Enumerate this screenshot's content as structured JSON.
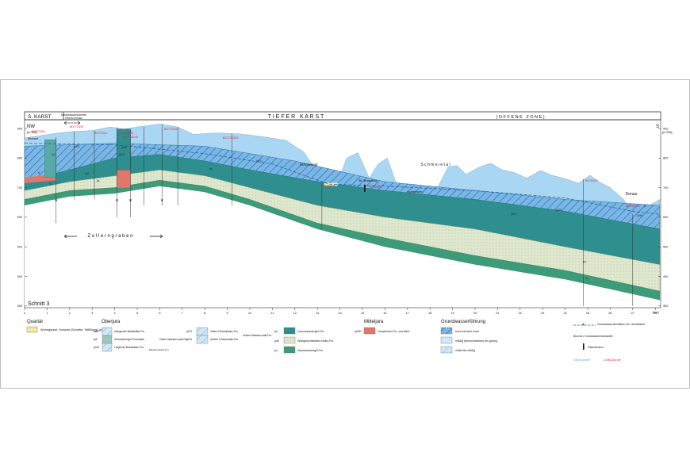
{
  "header": {
    "left": "S. KARST",
    "center": "T I E F E R   K A R S T",
    "right": "( O F F E N E   Z O N E )",
    "boundary_label_1": "Karstwasserscheide",
    "boundary_label_2": "Rhein-Donau"
  },
  "orientation": {
    "left": "NW",
    "right": "S"
  },
  "axis": {
    "y_unit": "[m NN]",
    "y_ticks": [
      "900",
      "800",
      "700",
      "600",
      "500",
      "400",
      "300"
    ],
    "x_unit": "[km]",
    "x_ticks": [
      "0",
      "1",
      "2",
      "3",
      "4",
      "5",
      "6",
      "7",
      "8",
      "9",
      "10",
      "11",
      "12",
      "13",
      "14",
      "15",
      "16",
      "17",
      "18",
      "19",
      "20",
      "21",
      "22",
      "23",
      "24",
      "25",
      "26",
      "27",
      "28"
    ]
  },
  "section_title": "Schnitt 3",
  "labels": {
    "zollerngraben": "Z o l l e r n g r a b e n",
    "schmeietal_1": "Schmeietal",
    "schmeietal_2": "S c h m e i e t a l",
    "donau": "Donau",
    "alb_place": "Albtrauf",
    "place_2": "Br. Strassberg",
    "place_3": "Kaiseringen"
  },
  "boreholes": [
    "BO7720/81",
    "BO7720/42",
    "BO7720/4",
    "BO7720/40",
    "BO7720/48",
    "BO7720/47",
    "BO7720/302",
    "BO7820/9",
    "BO7820/3",
    "BO7920/1",
    "BO7920/12"
  ],
  "layer_codes": [
    "joFO",
    "joFO",
    "joZ",
    "joL",
    "ki",
    "ox",
    "joFO",
    "joFO",
    "joL",
    "joZ",
    "joFO",
    "joFO",
    "joHF",
    "joL",
    "ox",
    "ki"
  ],
  "legend": {
    "quartaer": {
      "title": "Quartär",
      "items": [
        {
          "label": "Würmglazial, Holozän (Schotter, Talfüllung) (qWG)"
        }
      ]
    },
    "oberjura": {
      "title": "Oberjura",
      "col1": [
        {
          "code": "joHF",
          "label": "Hangende Bankkalke-Fm."
        },
        {
          "code": "joZ",
          "label": "Zementmergel-Formation"
        },
        {
          "code": "joLB",
          "label": "Liegende Bankkalke-Fm."
        }
      ],
      "col1_group": "Obere Massen-kalk-Fm.",
      "col1_side": "Mergel-stetten-Fm.",
      "col2": [
        {
          "code": "joFO",
          "label": "Obere Felsenkalke-Fm."
        },
        {
          "code": "joFU",
          "label": "Untere Felsenkalke-Fm."
        }
      ],
      "col2_group": "Untere Massen-kalk-Fm.",
      "col3": [
        {
          "code": "joL",
          "label": "Lacunosamergel-Fm."
        },
        {
          "code": "joW",
          "label": "Wohlgeschichtete-Kalke-Fm."
        },
        {
          "code": "joI",
          "label": "Impressamergel-Fm."
        }
      ]
    },
    "mitteljura": {
      "title": "Mitteljura",
      "items": [
        {
          "code": "jmOR",
          "label": "Ornatenton-Fm. und älter"
        }
      ]
    },
    "grundwasser": {
      "title": "Grundwasserführung",
      "items": [
        {
          "label": "hoch bis sehr hoch"
        },
        {
          "label": "mäßig (bereichsweise) bis gering"
        },
        {
          "label": "mittel bis mäßig"
        }
      ]
    },
    "symbols": {
      "gw_surface": "Grundwasseroberfläche frei / druckfläche",
      "well": "Brunnen, Grundwassermessstelle",
      "fault": "Fließstrecken",
      "gw_numbers": "GW-Nummer",
      "lgrb": "LGRB-Anrufe"
    }
  },
  "colors": {
    "sky": "#a9d6f2",
    "karst_dark": "#2e8f8e",
    "karst_mid": "#58aaa6",
    "joW": "#dfe8cf",
    "joI": "#3d9b79",
    "mittel": "#e2766b",
    "quart": "#f2ef9e",
    "red_label": "#e0282e",
    "blue_label": "#4aa3df"
  }
}
